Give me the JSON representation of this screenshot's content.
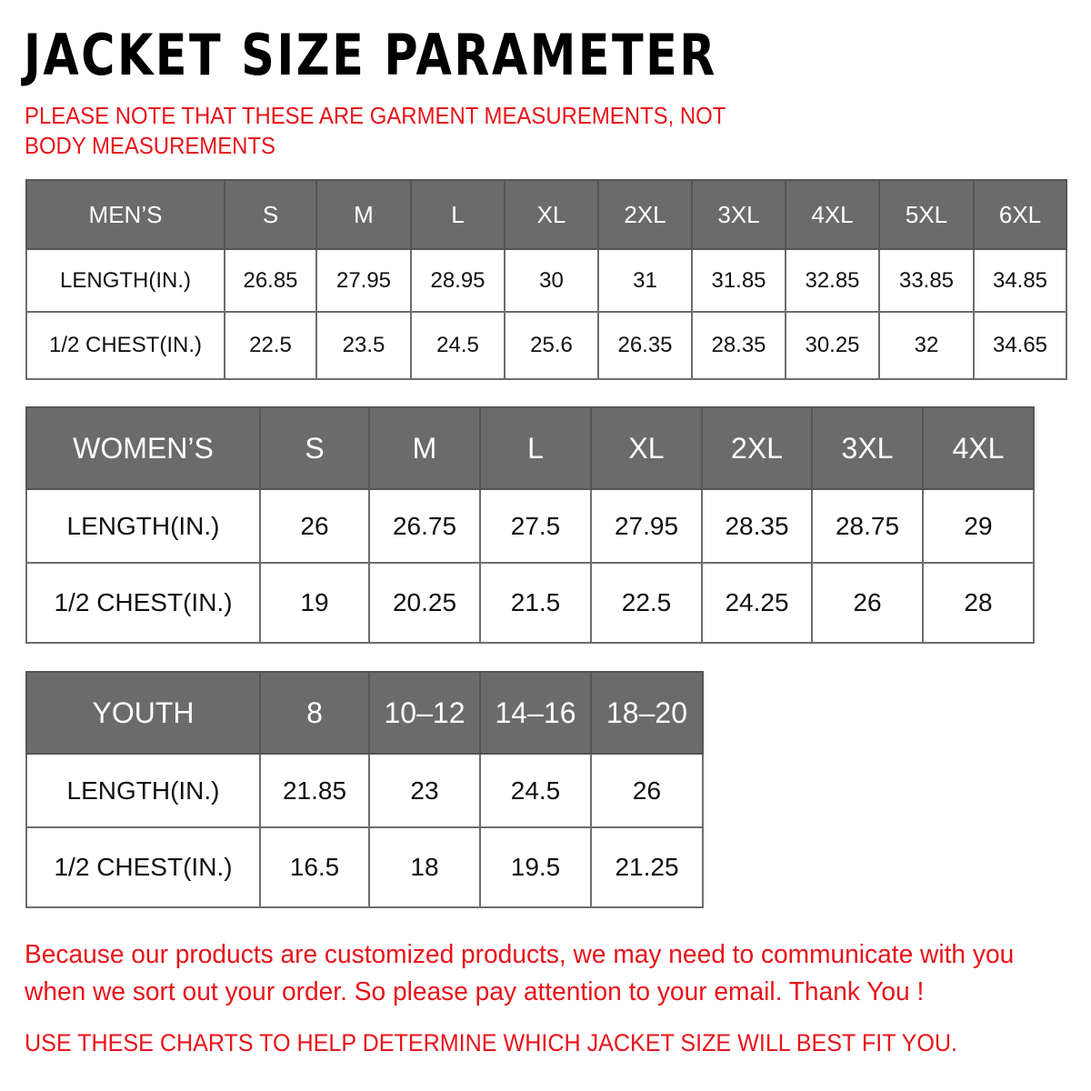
{
  "title": "JACKET SIZE PARAMETER",
  "note": "PLEASE NOTE THAT THESE ARE GARMENT MEASUREMENTS, NOT BODY MEASUREMENTS",
  "colors": {
    "header_bg": "#6b6b6b",
    "accent_red": "#e8141b"
  },
  "tables": {
    "men": {
      "header": [
        "MEN’S",
        "S",
        "M",
        "L",
        "XL",
        "2XL",
        "3XL",
        "4XL",
        "5XL",
        "6XL"
      ],
      "rows": [
        [
          "LENGTH(IN.)",
          "26.85",
          "27.95",
          "28.95",
          "30",
          "31",
          "31.85",
          "32.85",
          "33.85",
          "34.85"
        ],
        [
          "1/2 CHEST(IN.)",
          "22.5",
          "23.5",
          "24.5",
          "25.6",
          "26.35",
          "28.35",
          "30.25",
          "32",
          "34.65"
        ]
      ]
    },
    "women": {
      "header": [
        "WOMEN’S",
        "S",
        "M",
        "L",
        "XL",
        "2XL",
        "3XL",
        "4XL"
      ],
      "rows": [
        [
          "LENGTH(IN.)",
          "26",
          "26.75",
          "27.5",
          "27.95",
          "28.35",
          "28.75",
          "29"
        ],
        [
          "1/2 CHEST(IN.)",
          "19",
          "20.25",
          "21.5",
          "22.5",
          "24.25",
          "26",
          "28"
        ]
      ]
    },
    "youth": {
      "header": [
        "YOUTH",
        "8",
        "10–12",
        "14–16",
        "18–20"
      ],
      "rows": [
        [
          "LENGTH(IN.)",
          "21.85",
          "23",
          "24.5",
          "26"
        ],
        [
          "1/2 CHEST(IN.)",
          "16.5",
          "18",
          "19.5",
          "21.25"
        ]
      ]
    }
  },
  "footer": {
    "line1": "Because our products are customized products, we may need to communicate with you",
    "line2": "when we sort out your order. So please pay attention to your email. Thank You !",
    "line3": "USE THESE CHARTS TO HELP DETERMINE WHICH JACKET SIZE WILL BEST FIT YOU."
  }
}
